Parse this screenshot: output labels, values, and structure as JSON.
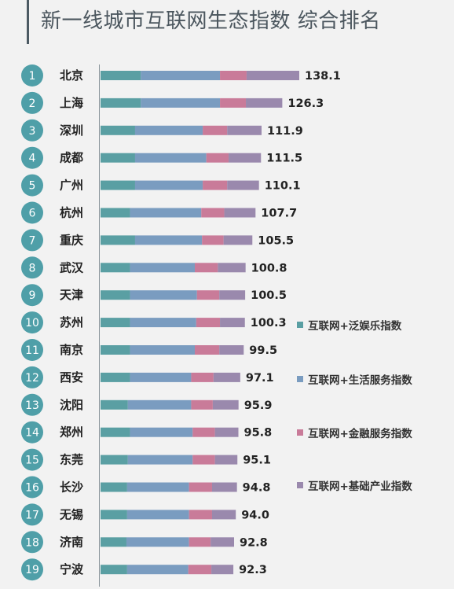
{
  "title": "新一线城市互联网生态指数 综合排名",
  "colors": {
    "entertainment": "#5a9fa3",
    "life_services": "#7a9cc0",
    "finance": "#c97b99",
    "infrastructure": "#9a89ad",
    "rank_circle": "#4f9fa8"
  },
  "chart_data": {
    "type": "bar",
    "stacked": true,
    "orientation": "horizontal",
    "categories": [
      "北京",
      "上海",
      "深圳",
      "成都",
      "广州",
      "杭州",
      "重庆",
      "武汉",
      "天津",
      "苏州",
      "南京",
      "西安",
      "沈阳",
      "郑州",
      "东莞",
      "长沙",
      "无锡",
      "济南",
      "宁波"
    ],
    "ranks": [
      "1",
      "2",
      "3",
      "4",
      "5",
      "6",
      "7",
      "8",
      "9",
      "10",
      "11",
      "12",
      "13",
      "14",
      "15",
      "16",
      "17",
      "18",
      "19"
    ],
    "totals": [
      "138.1",
      "126.3",
      "111.9",
      "111.5",
      "110.1",
      "107.7",
      "105.5",
      "100.8",
      "100.5",
      "100.3",
      "99.5",
      "97.1",
      "95.9",
      "95.8",
      "95.1",
      "94.8",
      "94.0",
      "92.8",
      "92.3"
    ],
    "series": [
      {
        "name": "互联网+泛娱乐指数",
        "values": [
          28.0,
          28.0,
          24.0,
          24.0,
          24.0,
          20.5,
          24.0,
          20.5,
          20.5,
          20.5,
          20.5,
          20.5,
          19.0,
          20.5,
          19.0,
          18.5,
          18.5,
          18.0,
          18.5
        ]
      },
      {
        "name": "互联网+生活服务指数",
        "values": [
          55.0,
          55.0,
          47.0,
          49.5,
          47.0,
          49.5,
          46.5,
          45.0,
          46.5,
          46.0,
          45.0,
          42.5,
          44.0,
          43.5,
          45.0,
          43.0,
          43.0,
          43.5,
          42.5
        ]
      },
      {
        "name": "互联网+金融服务指数",
        "values": [
          18.5,
          18.0,
          17.0,
          15.5,
          17.0,
          16.0,
          15.0,
          16.0,
          15.5,
          16.5,
          17.0,
          15.5,
          15.0,
          15.5,
          15.5,
          16.0,
          16.0,
          15.0,
          16.0
        ]
      },
      {
        "name": "互联网+基础产业指数",
        "values": [
          36.6,
          25.3,
          23.9,
          22.5,
          22.1,
          21.7,
          20.0,
          19.3,
          18.0,
          17.3,
          17.0,
          18.6,
          17.9,
          16.3,
          15.6,
          17.3,
          16.5,
          16.3,
          15.3
        ]
      }
    ]
  }
}
